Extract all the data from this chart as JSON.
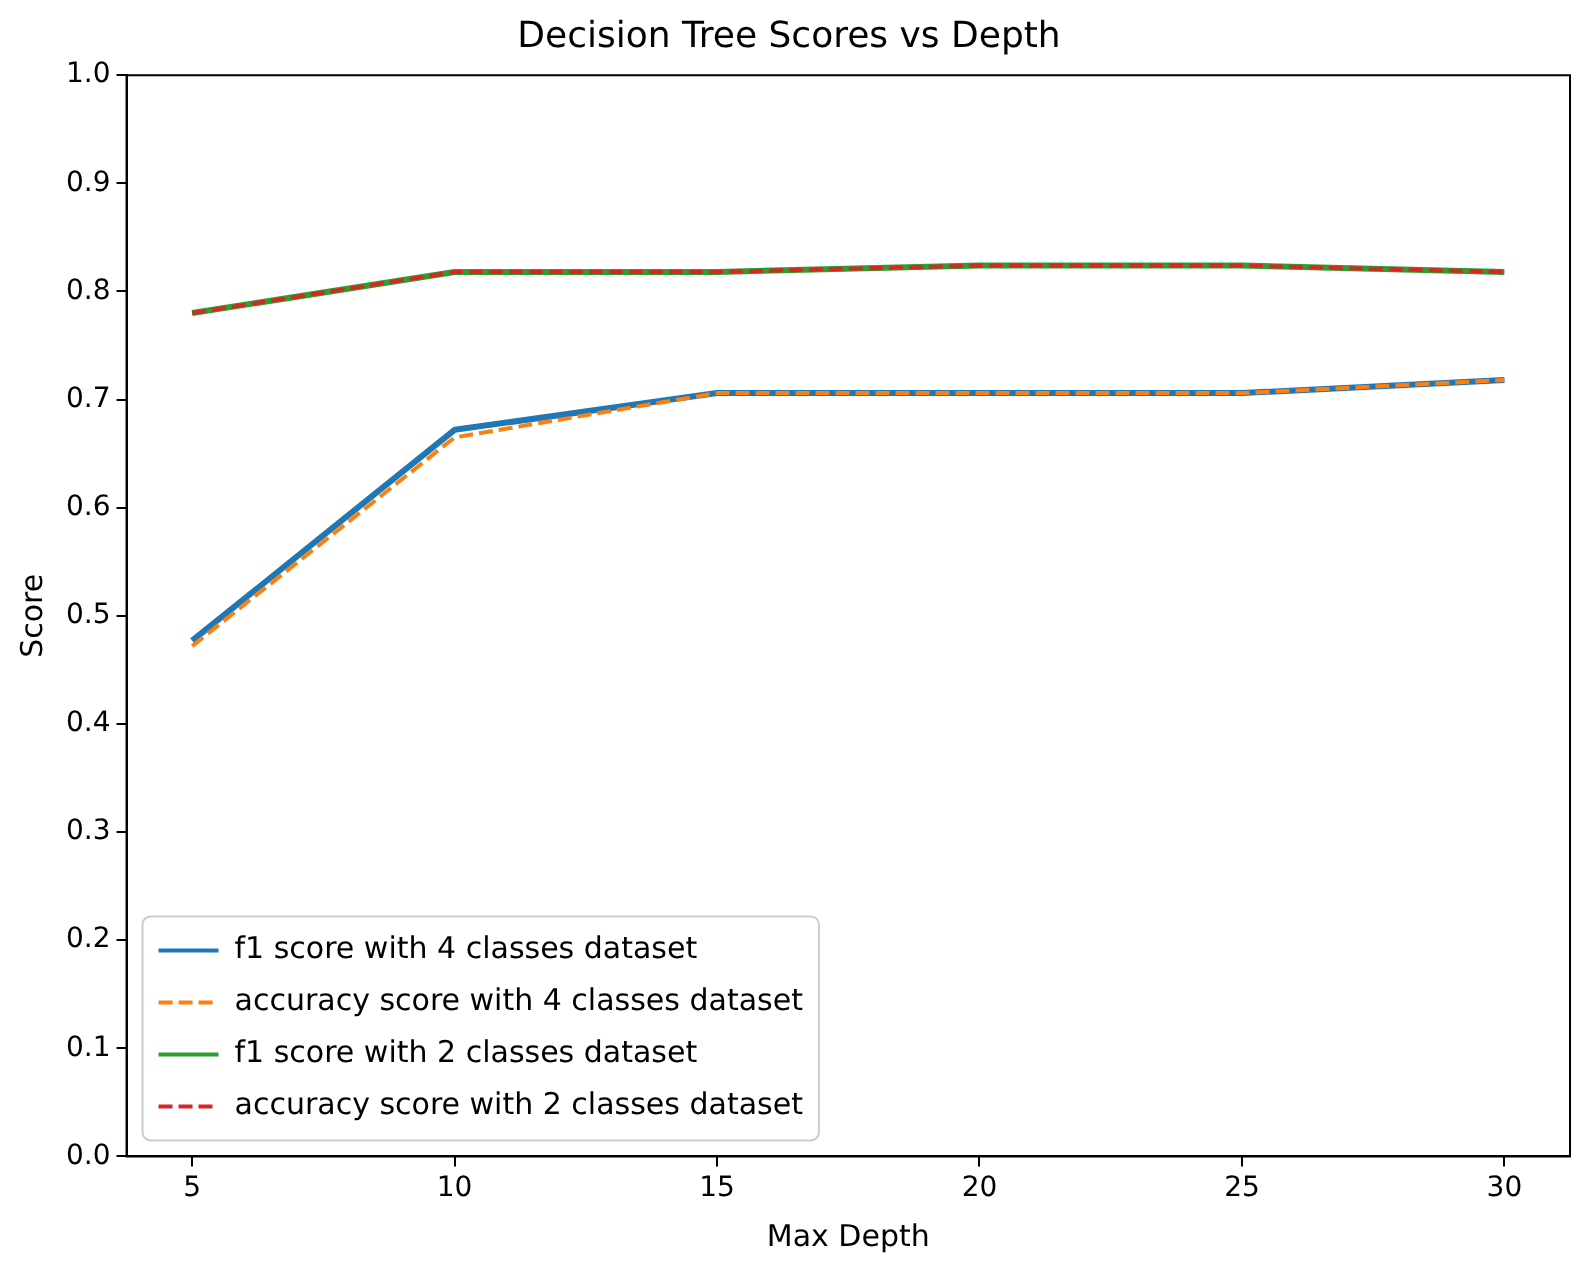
{
  "chart_data": {
    "type": "line",
    "title": "Decision Tree Scores vs Depth",
    "xlabel": "Max Depth",
    "ylabel": "Score",
    "x": [
      5,
      10,
      15,
      20,
      25,
      30
    ],
    "series": [
      {
        "name": "f1 score with 4 classes dataset",
        "color": "#1f77b4",
        "line_style": "solid",
        "values": [
          0.477,
          0.672,
          0.706,
          0.706,
          0.706,
          0.718
        ]
      },
      {
        "name": "accuracy score with 4 classes dataset",
        "color": "#ff7f0e",
        "line_style": "dashed",
        "values": [
          0.472,
          0.665,
          0.706,
          0.706,
          0.706,
          0.718
        ]
      },
      {
        "name": "f1 score with 2 classes dataset",
        "color": "#2ca02c",
        "line_style": "solid",
        "values": [
          0.78,
          0.818,
          0.818,
          0.824,
          0.824,
          0.818
        ]
      },
      {
        "name": "accuracy score with 2 classes dataset",
        "color": "#d62728",
        "line_style": "dashed",
        "values": [
          0.78,
          0.818,
          0.818,
          0.824,
          0.824,
          0.818
        ]
      }
    ],
    "xlim": [
      3.75,
      31.25
    ],
    "xticks": [
      5,
      10,
      15,
      20,
      25,
      30
    ],
    "ylim": [
      0,
      1
    ],
    "yticks": [
      {
        "value": 0,
        "label": "0.0"
      },
      0.1,
      0.2,
      0.3,
      0.4,
      0.5,
      0.6,
      0.7,
      0.8,
      0.9,
      {
        "value": 1,
        "label": "1.0"
      }
    ],
    "grid": false,
    "legend": "bottom left",
    "marker": "none"
  }
}
